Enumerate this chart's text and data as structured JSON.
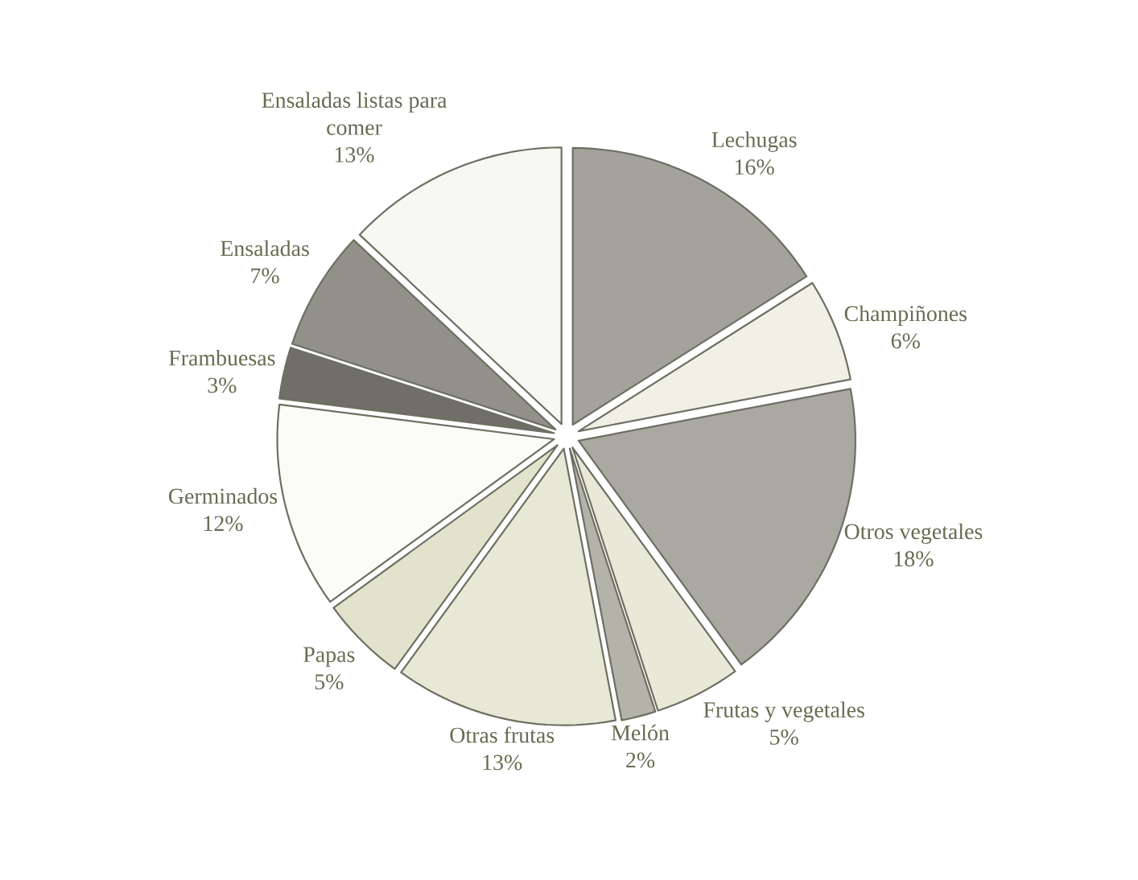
{
  "chart_data": {
    "type": "pie",
    "categories": [
      "Lechugas",
      "Champiñones",
      "Otros vegetales",
      "Frutas y vegetales",
      "Melón",
      "Otras frutas",
      "Papas",
      "Germinados",
      "Frambuesas",
      "Ensaladas",
      "Ensaladas listas para comer"
    ],
    "values": [
      16,
      6,
      18,
      5,
      2,
      13,
      5,
      12,
      3,
      7,
      13
    ],
    "value_labels": [
      "16%",
      "6%",
      "18%",
      "5%",
      "2%",
      "13%",
      "5%",
      "12%",
      "3%",
      "7%",
      "13%"
    ],
    "colors": [
      "#a3a39b",
      "#f1f0e6",
      "#a9a9a1",
      "#e9e9da",
      "#b3b3aa",
      "#e7e8d6",
      "#e1e3cd",
      "#fbfbf7",
      "#6f6f67",
      "#919189",
      "#f8f8f3"
    ]
  }
}
